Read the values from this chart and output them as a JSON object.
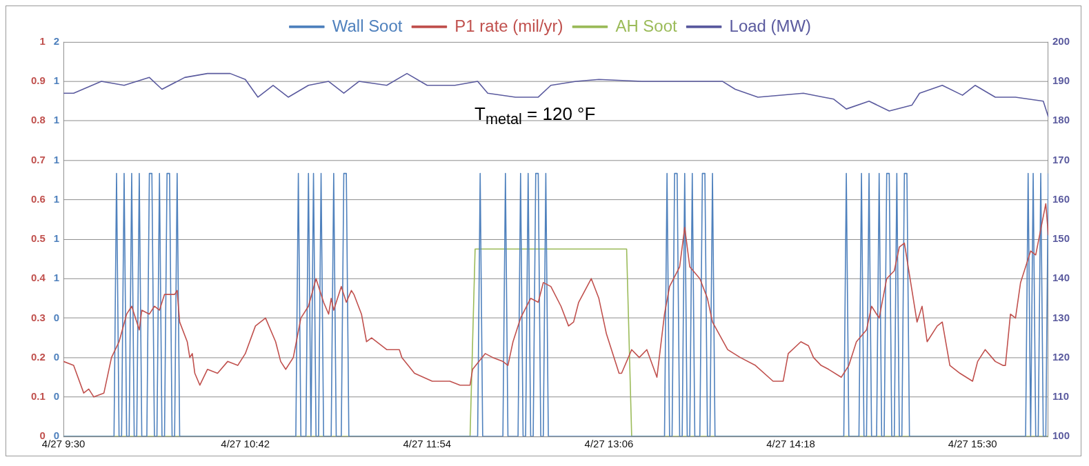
{
  "chart_data": {
    "type": "line",
    "legend": "top",
    "grid": "y",
    "annotations": [
      "T$_{metal}$ = 120 °F"
    ],
    "xlim": [
      "--04-27T09:30",
      "--04-27T16:00"
    ],
    "xticks": [
      {
        "value": "--04-27T09:30",
        "label": "4/27 9:30"
      },
      {
        "value": "--04-27T10:42",
        "label": "4/27 10:42"
      },
      {
        "value": "--04-27T11:54",
        "label": "4/27 11:54"
      },
      {
        "value": "--04-27T13:06",
        "label": "4/27 13:06"
      },
      {
        "value": "--04-27T14:18",
        "label": "4/27 14:18"
      },
      {
        "value": "--04-27T15:30",
        "label": "4/27 15:30"
      }
    ],
    "ylim": [
      0,
      1
    ],
    "yticks": [
      0,
      0.1,
      0.2,
      0.3,
      0.4,
      0.5,
      0.6,
      0.7,
      0.8,
      0.9,
      1
    ],
    "y2lim": [
      0,
      1.5
    ],
    "y2ticks": [
      {
        "value": 0,
        "label": "0"
      },
      {
        "value": 0.15,
        "label": "0"
      },
      {
        "value": 0.3,
        "label": "0"
      },
      {
        "value": 0.45,
        "label": "0"
      },
      {
        "value": 0.6,
        "label": "1"
      },
      {
        "value": 0.75,
        "label": "1"
      },
      {
        "value": 0.9,
        "label": "1"
      },
      {
        "value": 1.05,
        "label": "1"
      },
      {
        "value": 1.2,
        "label": "1"
      },
      {
        "value": 1.35,
        "label": "1"
      },
      {
        "value": 1.5,
        "label": "2"
      }
    ],
    "y3lim": [
      100,
      200
    ],
    "y3ticks": [
      100,
      110,
      120,
      130,
      140,
      150,
      160,
      170,
      180,
      190,
      200
    ],
    "series": [
      {
        "name": "Wall Soot",
        "color": "#4f81bd",
        "axis": "y2",
        "x": [
          "--04-27T09:30",
          "--04-27T09:50",
          "--04-27T09:51",
          "--04-27T09:52",
          "--04-27T09:53",
          "--04-27T09:54",
          "--04-27T09:55",
          "--04-27T09:56",
          "--04-27T09:57",
          "--04-27T09:58",
          "--04-27T09:59",
          "--04-27T10:00",
          "--04-27T10:01",
          "--04-27T10:03",
          "--04-27T10:04",
          "--04-27T10:05",
          "--04-27T10:06",
          "--04-27T10:07",
          "--04-27T10:08",
          "--04-27T10:09",
          "--04-27T10:10",
          "--04-27T10:11",
          "--04-27T10:12",
          "--04-27T10:13",
          "--04-27T10:14",
          "--04-27T10:15",
          "--04-27T10:16",
          "--04-27T11:02",
          "--04-27T11:03",
          "--04-27T11:04",
          "--04-27T11:06",
          "--04-27T11:07",
          "--04-27T11:08",
          "--04-27T11:08",
          "--04-27T11:09",
          "--04-27T11:10",
          "--04-27T11:11",
          "--04-27T11:12",
          "--04-27T11:13",
          "--04-27T11:16",
          "--04-27T11:17",
          "--04-27T11:18",
          "--04-27T11:20",
          "--04-27T11:21",
          "--04-27T11:22",
          "--04-27T11:23",
          "--04-27T12:14",
          "--04-27T12:15",
          "--04-27T12:16",
          "--04-27T12:24",
          "--04-27T12:25",
          "--04-27T12:26",
          "--04-27T12:30",
          "--04-27T12:31",
          "--04-27T12:32",
          "--04-27T12:33",
          "--04-27T12:34",
          "--04-27T12:35",
          "--04-27T12:36",
          "--04-27T12:37",
          "--04-27T12:38",
          "--04-27T12:39",
          "--04-27T12:40",
          "--04-27T12:41",
          "--04-27T12:42",
          "--04-27T13:28",
          "--04-27T13:29",
          "--04-27T13:30",
          "--04-27T13:31",
          "--04-27T13:32",
          "--04-27T13:33",
          "--04-27T13:34",
          "--04-27T13:35",
          "--04-27T13:36",
          "--04-27T13:37",
          "--04-27T13:38",
          "--04-27T13:39",
          "--04-27T13:40",
          "--04-27T13:42",
          "--04-27T13:43",
          "--04-27T13:44",
          "--04-27T13:45",
          "--04-27T13:46",
          "--04-27T13:47",
          "--04-27T13:48",
          "--04-27T14:39",
          "--04-27T14:40",
          "--04-27T14:41",
          "--04-27T14:45",
          "--04-27T14:46",
          "--04-27T14:47",
          "--04-27T14:48",
          "--04-27T14:49",
          "--04-27T14:50",
          "--04-27T14:52",
          "--04-27T14:53",
          "--04-27T14:54",
          "--04-27T14:55",
          "--04-27T14:56",
          "--04-27T14:57",
          "--04-27T14:58",
          "--04-27T14:59",
          "--04-27T15:00",
          "--04-27T15:01",
          "--04-27T15:02",
          "--04-27T15:03",
          "--04-27T15:04",
          "--04-27T15:05",
          "--04-27T15:51",
          "--04-27T15:52",
          "--04-27T15:53",
          "--04-27T15:53",
          "--04-27T15:54",
          "--04-27T15:55",
          "--04-27T15:56",
          "--04-27T15:57",
          "--04-27T15:58",
          "--04-27T15:59",
          "--04-27T16:00"
        ],
        "values": [
          0,
          0,
          1,
          0,
          0,
          1,
          0,
          0,
          1,
          0,
          0,
          1,
          0,
          0,
          1,
          1,
          0,
          0,
          1,
          0,
          0,
          1,
          1,
          0,
          0,
          1,
          0,
          0,
          1,
          0,
          0,
          1,
          0,
          0,
          1,
          0,
          0,
          1,
          0,
          0,
          1,
          0,
          0,
          1,
          1,
          0,
          0,
          1,
          0,
          0,
          1,
          0,
          0,
          1,
          0,
          0,
          1,
          0,
          0,
          1,
          1,
          0,
          0,
          1,
          0,
          0,
          1,
          0,
          0,
          1,
          1,
          0,
          0,
          1,
          0,
          0,
          1,
          0,
          0,
          1,
          1,
          0,
          0,
          1,
          0,
          0,
          1,
          0,
          0,
          1,
          0,
          0,
          1,
          0,
          0,
          1,
          0,
          0,
          1,
          1,
          0,
          0,
          1,
          0,
          0,
          1,
          1,
          0,
          0,
          1,
          0,
          0,
          1,
          0,
          0,
          1,
          0,
          0,
          1
        ]
      },
      {
        "name": "P1 rate (mil/yr)",
        "color": "#c0504d",
        "x": [
          "--04-27T09:30",
          "--04-27T09:34",
          "--04-27T09:38",
          "--04-27T09:40",
          "--04-27T09:42",
          "--04-27T09:46",
          "--04-27T09:49",
          "--04-27T09:52",
          "--04-27T09:55",
          "--04-27T09:57",
          "--04-27T10:00",
          "--04-27T10:01",
          "--04-27T10:04",
          "--04-27T10:06",
          "--04-27T10:08",
          "--04-27T10:10",
          "--04-27T10:14",
          "--04-27T10:15",
          "--04-27T10:16",
          "--04-27T10:19",
          "--04-27T10:20",
          "--04-27T10:21",
          "--04-27T10:22",
          "--04-27T10:24",
          "--04-27T10:27",
          "--04-27T10:31",
          "--04-27T10:35",
          "--04-27T10:39",
          "--04-27T10:42",
          "--04-27T10:46",
          "--04-27T10:50",
          "--04-27T10:54",
          "--04-27T10:56",
          "--04-27T10:58",
          "--04-27T11:01",
          "--04-27T11:04",
          "--04-27T11:07",
          "--04-27T11:10",
          "--04-27T11:13",
          "--04-27T11:15",
          "--04-27T11:16",
          "--04-27T11:17",
          "--04-27T11:20",
          "--04-27T11:22",
          "--04-27T11:24",
          "--04-27T11:25",
          "--04-27T11:28",
          "--04-27T11:30",
          "--04-27T11:32",
          "--04-27T11:38",
          "--04-27T11:43",
          "--04-27T11:44",
          "--04-27T11:49",
          "--04-27T11:56",
          "--04-27T12:03",
          "--04-27T12:07",
          "--04-27T12:11",
          "--04-27T12:12",
          "--04-27T12:17",
          "--04-27T12:20",
          "--04-27T12:24",
          "--04-27T12:26",
          "--04-27T12:28",
          "--04-27T12:31",
          "--04-27T12:35",
          "--04-27T12:38",
          "--04-27T12:40",
          "--04-27T12:43",
          "--04-27T12:47",
          "--04-27T12:50",
          "--04-27T12:52",
          "--04-27T12:54",
          "--04-27T12:59",
          "--04-27T13:02",
          "--04-27T13:05",
          "--04-27T13:10",
          "--04-27T13:11",
          "--04-27T13:15",
          "--04-27T13:18",
          "--04-27T13:21",
          "--04-27T13:25",
          "--04-27T13:28",
          "--04-27T13:30",
          "--04-27T13:34",
          "--04-27T13:36",
          "--04-27T13:38",
          "--04-27T13:42",
          "--04-27T13:45",
          "--04-27T13:47",
          "--04-27T13:53",
          "--04-27T13:58",
          "--04-27T14:04",
          "--04-27T14:11",
          "--04-27T14:15",
          "--04-27T14:17",
          "--04-27T14:22",
          "--04-27T14:25",
          "--04-27T14:27",
          "--04-27T14:30",
          "--04-27T14:33",
          "--04-27T14:38",
          "--04-27T14:41",
          "--04-27T14:44",
          "--04-27T14:48",
          "--04-27T14:50",
          "--04-27T14:53",
          "--04-27T14:56",
          "--04-27T14:59",
          "--04-27T15:01",
          "--04-27T15:03",
          "--04-27T15:04",
          "--04-27T15:08",
          "--04-27T15:10",
          "--04-27T15:12",
          "--04-27T15:16",
          "--04-27T15:18",
          "--04-27T15:21",
          "--04-27T15:25",
          "--04-27T15:30",
          "--04-27T15:32",
          "--04-27T15:35",
          "--04-27T15:39",
          "--04-27T15:42",
          "--04-27T15:43",
          "--04-27T15:45",
          "--04-27T15:47",
          "--04-27T15:49",
          "--04-27T15:53",
          "--04-27T15:55",
          "--04-27T15:59",
          "--04-27T16:00"
        ],
        "values": [
          0.19,
          0.18,
          0.11,
          0.12,
          0.1,
          0.11,
          0.2,
          0.24,
          0.31,
          0.33,
          0.27,
          0.32,
          0.31,
          0.33,
          0.32,
          0.36,
          0.36,
          0.37,
          0.29,
          0.24,
          0.2,
          0.21,
          0.16,
          0.13,
          0.17,
          0.16,
          0.19,
          0.18,
          0.21,
          0.28,
          0.3,
          0.24,
          0.19,
          0.17,
          0.2,
          0.3,
          0.33,
          0.4,
          0.34,
          0.31,
          0.35,
          0.32,
          0.38,
          0.34,
          0.37,
          0.36,
          0.31,
          0.24,
          0.25,
          0.22,
          0.22,
          0.2,
          0.16,
          0.14,
          0.14,
          0.13,
          0.13,
          0.17,
          0.21,
          0.2,
          0.19,
          0.18,
          0.24,
          0.3,
          0.35,
          0.34,
          0.39,
          0.38,
          0.33,
          0.28,
          0.29,
          0.34,
          0.4,
          0.35,
          0.26,
          0.16,
          0.16,
          0.22,
          0.2,
          0.22,
          0.15,
          0.31,
          0.38,
          0.43,
          0.53,
          0.43,
          0.4,
          0.35,
          0.29,
          0.22,
          0.2,
          0.18,
          0.14,
          0.14,
          0.21,
          0.24,
          0.23,
          0.2,
          0.18,
          0.17,
          0.15,
          0.18,
          0.24,
          0.27,
          0.33,
          0.3,
          0.4,
          0.42,
          0.48,
          0.49,
          0.45,
          0.29,
          0.33,
          0.24,
          0.28,
          0.29,
          0.18,
          0.16,
          0.14,
          0.19,
          0.22,
          0.19,
          0.18,
          0.18,
          0.31,
          0.3,
          0.39,
          0.47,
          0.46,
          0.59,
          0.51
        ]
      },
      {
        "name": "AH Soot",
        "color": "#9bbb59",
        "x": [
          "--04-27T09:30",
          "--04-27T12:11",
          "--04-27T12:13",
          "--04-27T13:13",
          "--04-27T13:15",
          "--04-27T16:00"
        ],
        "values": [
          0,
          0,
          0.475,
          0.475,
          0,
          0
        ]
      },
      {
        "name": "Load (MW)",
        "color": "#5a5a9e",
        "axis": "y3",
        "x": [
          "--04-27T09:30",
          "--04-27T09:34",
          "--04-27T09:45",
          "--04-27T09:54",
          "--04-27T10:04",
          "--04-27T10:09",
          "--04-27T10:18",
          "--04-27T10:27",
          "--04-27T10:36",
          "--04-27T10:42",
          "--04-27T10:47",
          "--04-27T10:53",
          "--04-27T10:59",
          "--04-27T11:07",
          "--04-27T11:15",
          "--04-27T11:21",
          "--04-27T11:27",
          "--04-27T11:38",
          "--04-27T11:46",
          "--04-27T11:54",
          "--04-27T12:05",
          "--04-27T12:14",
          "--04-27T12:18",
          "--04-27T12:29",
          "--04-27T12:38",
          "--04-27T12:43",
          "--04-27T12:53",
          "--04-27T13:02",
          "--04-27T13:19",
          "--04-27T13:39",
          "--04-27T13:51",
          "--04-27T13:56",
          "--04-27T14:05",
          "--04-27T14:23",
          "--04-27T14:31",
          "--04-27T14:35",
          "--04-27T14:40",
          "--04-27T14:49",
          "--04-27T14:57",
          "--04-27T15:06",
          "--04-27T15:09",
          "--04-27T15:18",
          "--04-27T15:26",
          "--04-27T15:31",
          "--04-27T15:39",
          "--04-27T15:47",
          "--04-27T15:58",
          "--04-27T16:00"
        ],
        "values": [
          187,
          187,
          190,
          189,
          191,
          188,
          191,
          192,
          192,
          190.5,
          186,
          189,
          186,
          189,
          190,
          187,
          190,
          189,
          192,
          189,
          189,
          190,
          187,
          186,
          186,
          189,
          190,
          190.5,
          190,
          190,
          190,
          188,
          186,
          187,
          186,
          185.5,
          183,
          185,
          182.5,
          184,
          187,
          189,
          186.5,
          189,
          186,
          186,
          185,
          181
        ]
      }
    ]
  }
}
